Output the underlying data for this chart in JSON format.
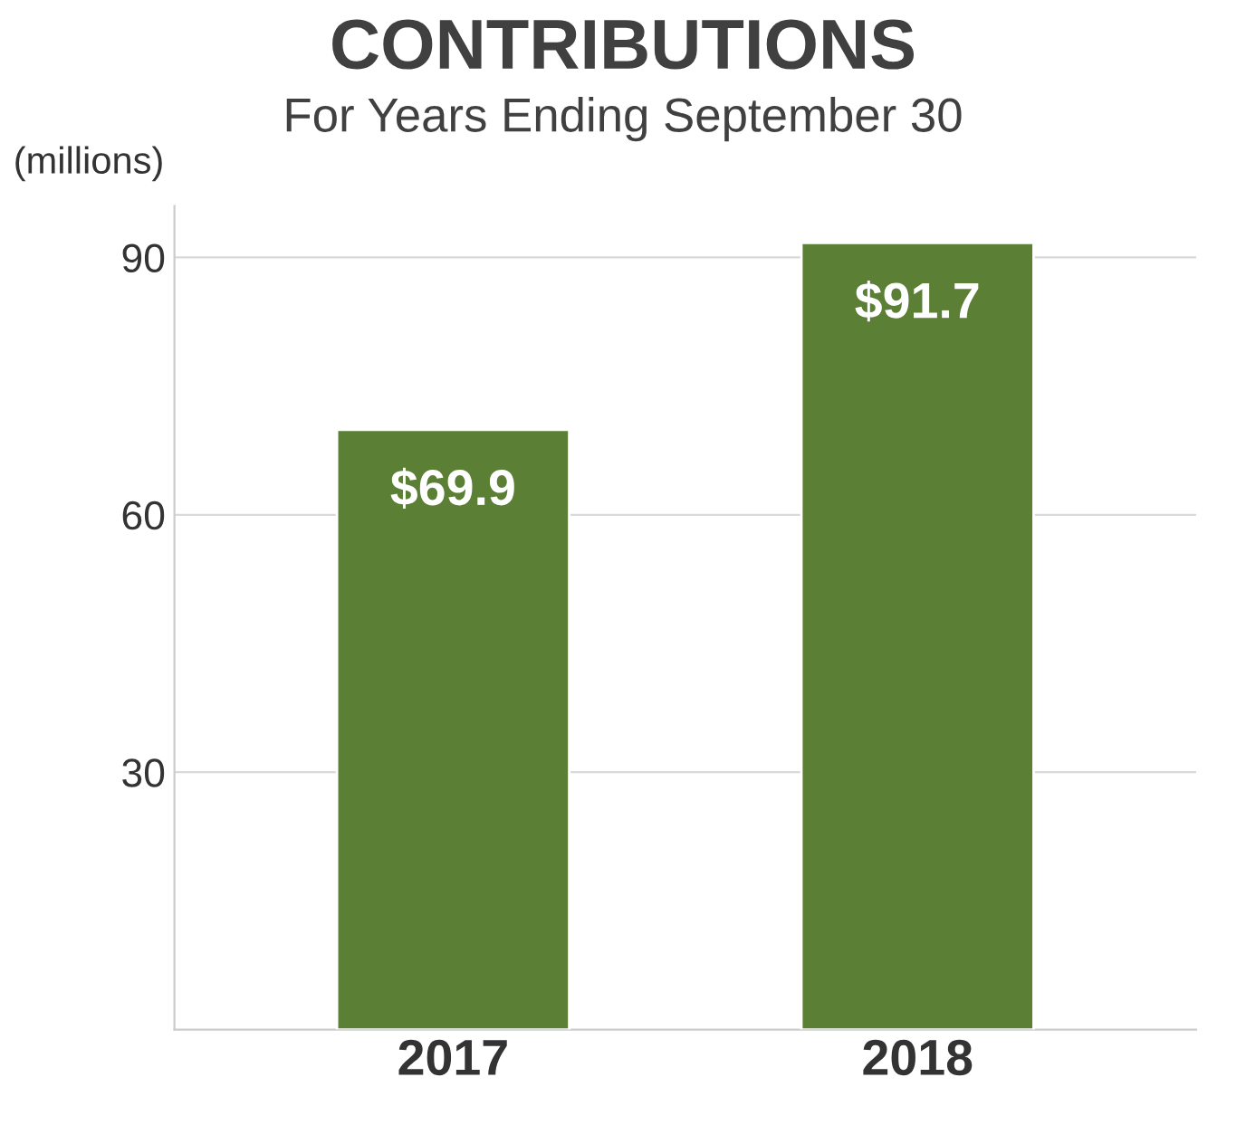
{
  "chart_data": {
    "type": "bar",
    "title": "CONTRIBUTIONS",
    "subtitle": "For Years Ending September 30",
    "ylabel": "(millions)",
    "categories": [
      "2017",
      "2018"
    ],
    "values": [
      69.9,
      91.7
    ],
    "color": "#5a7f35",
    "value_labels": [
      "$69.9",
      "$91.7"
    ],
    "ylim": [
      0,
      96
    ],
    "yticks": [
      30,
      60,
      90
    ],
    "grid": "y"
  }
}
